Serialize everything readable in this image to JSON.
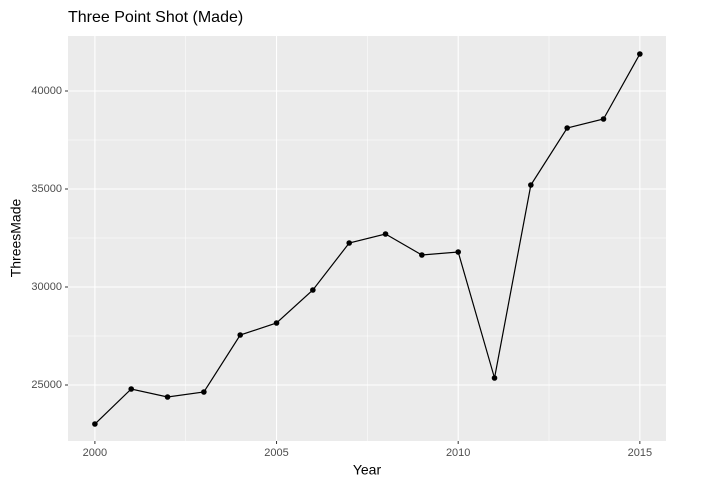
{
  "chart_data": {
    "type": "line",
    "title": "Three Point Shot (Made)",
    "x_label": "Year",
    "y_label": "ThreesMade",
    "x": [
      2000,
      2001,
      2002,
      2003,
      2004,
      2005,
      2006,
      2007,
      2008,
      2009,
      2010,
      2011,
      2012,
      2013,
      2014,
      2015
    ],
    "series": [
      {
        "name": "ThreesMade",
        "color": "#000000",
        "values": [
          23010,
          24796,
          24388,
          24643,
          27551,
          28163,
          29847,
          32245,
          32704,
          31633,
          31786,
          25357,
          35204,
          38112,
          38571,
          41888
        ]
      }
    ],
    "xlim": [
      1999.26,
      2015.72
    ],
    "xticks": [
      2000,
      2005,
      2010,
      2015
    ],
    "ylim": [
      22143,
      42806
    ],
    "yticks": [
      25000,
      30000,
      35000,
      40000
    ],
    "grid": true
  }
}
